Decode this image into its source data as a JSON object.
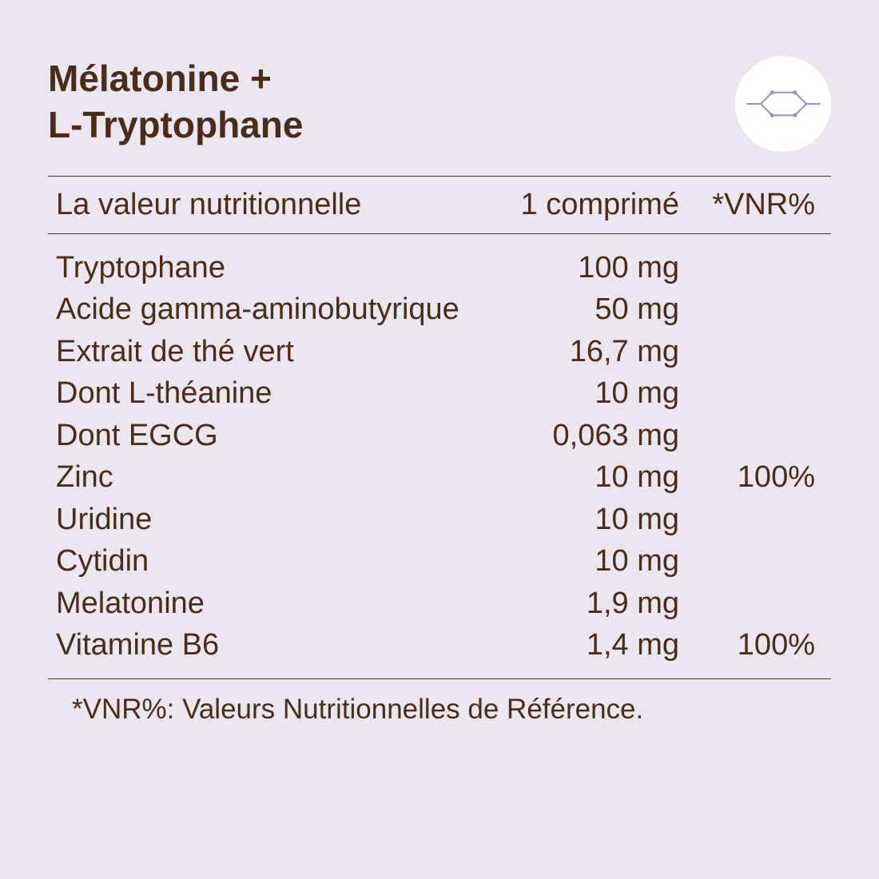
{
  "title_line1": "Mélatonine +",
  "title_line2": "L-Tryptophane",
  "icon_stroke": "#9d8fc5",
  "header": {
    "label": "La valeur nutritionnelle",
    "amount": "1 comprimé",
    "vnr": "*VNR%"
  },
  "rows": [
    {
      "label": "Tryptophane",
      "amount": "100 mg",
      "vnr": "",
      "indent": false
    },
    {
      "label": "Acide gamma-aminobutyrique",
      "amount": "50 mg",
      "vnr": "",
      "indent": false
    },
    {
      "label": "Extrait de thé vert",
      "amount": "16,7 mg",
      "vnr": "",
      "indent": false
    },
    {
      "label": "Dont L-théanine",
      "amount": "10 mg",
      "vnr": "",
      "indent": true
    },
    {
      "label": "Dont EGCG",
      "amount": "0,063 mg",
      "vnr": "",
      "indent": true
    },
    {
      "label": "Zinc",
      "amount": "10 mg",
      "vnr": "100%",
      "indent": false
    },
    {
      "label": "Uridine",
      "amount": "10 mg",
      "vnr": "",
      "indent": false
    },
    {
      "label": "Cytidin",
      "amount": "10 mg",
      "vnr": "",
      "indent": false
    },
    {
      "label": "Melatonine",
      "amount": "1,9 mg",
      "vnr": "",
      "indent": false
    },
    {
      "label": "Vitamine B6",
      "amount": "1,4 mg",
      "vnr": "100%",
      "indent": false
    }
  ],
  "footnote": "*VNR%: Valeurs Nutritionnelles de Référence.",
  "colors": {
    "background": "#ece6f0",
    "text": "#4a2c1a",
    "border": "#4a2c1a",
    "icon_bg": "#ffffff"
  },
  "typography": {
    "title_fontsize": 46,
    "header_fontsize": 38,
    "row_fontsize": 38,
    "footnote_fontsize": 35
  }
}
